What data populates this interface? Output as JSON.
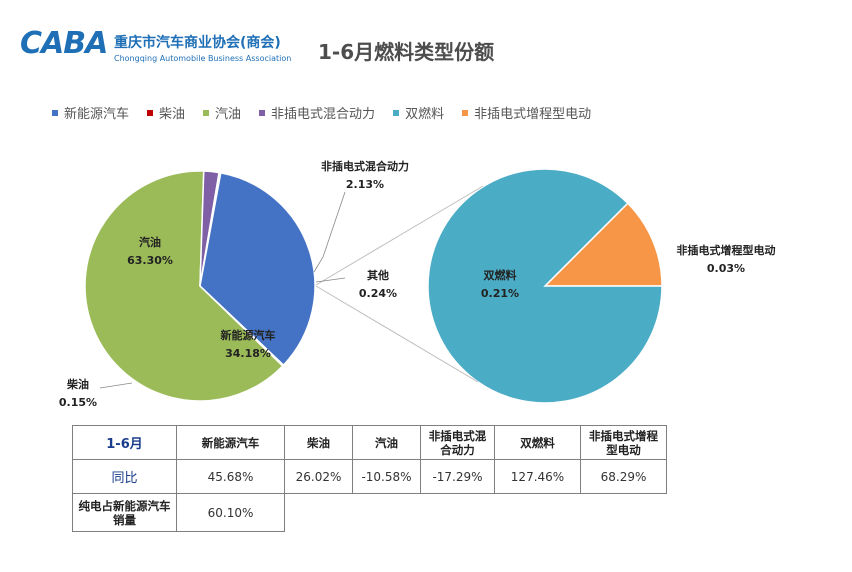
{
  "header": {
    "logo_mark": "CABA",
    "logo_cn": "重庆市汽车商业协会(商会)",
    "logo_en": "Chongqing Automobile Business Association",
    "title": "1-6月燃料类型份额"
  },
  "legend": [
    {
      "label": "新能源汽车",
      "color": "#4472c4"
    },
    {
      "label": "柴油",
      "color": "#c00000"
    },
    {
      "label": "汽油",
      "color": "#9bbb59"
    },
    {
      "label": "非插电式混合动力",
      "color": "#7f5fa5"
    },
    {
      "label": "双燃料",
      "color": "#4bacc6"
    },
    {
      "label": "非插电式增程型电动",
      "color": "#f79646"
    }
  ],
  "chart_data": [
    {
      "type": "pie",
      "categories": [
        "汽油",
        "非插电式混合动力",
        "其他",
        "新能源汽车",
        "柴油"
      ],
      "values": [
        63.3,
        2.13,
        0.24,
        34.18,
        0.15
      ],
      "labels": [
        "63.30%",
        "2.13%",
        "0.24%",
        "34.18%",
        "0.15%"
      ],
      "colors": [
        "#9bbb59",
        "#7f5fa5",
        "#c0c0c0",
        "#4472c4",
        "#c00000"
      ]
    },
    {
      "type": "pie",
      "categories": [
        "双燃料",
        "非插电式增程型电动"
      ],
      "values": [
        0.21,
        0.03
      ],
      "labels": [
        "0.21%",
        "0.03%"
      ],
      "colors": [
        "#4bacc6",
        "#f79646"
      ]
    }
  ],
  "table": {
    "corner": "1-6月",
    "columns": [
      "新能源汽车",
      "柴油",
      "汽油",
      "非插电式混合动力",
      "双燃料",
      "非插电式增程型电动"
    ],
    "row1": {
      "label": "同比",
      "values": [
        "45.68%",
        "26.02%",
        "-10.58%",
        "-17.29%",
        "127.46%",
        "68.29%"
      ]
    },
    "row2": {
      "label": "纯电占新能源汽车销量",
      "value": "60.10%"
    }
  }
}
